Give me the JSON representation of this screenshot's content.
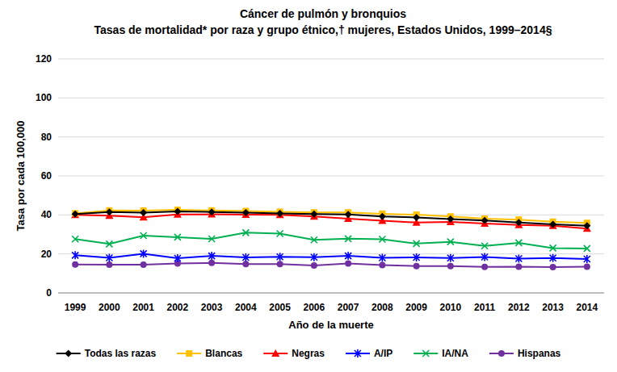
{
  "chart_data": {
    "type": "line",
    "title": "Cáncer de pulmón y bronquios",
    "subtitle": "Tasas de mortalidad* por raza y grupo étnico,† mujeres, Estados Unidos, 1999–2014§",
    "x_label": "Año de la muerte",
    "y_label": "Tasa por cada 100,000",
    "categories": [
      "1999",
      "2000",
      "2001",
      "2002",
      "2003",
      "2004",
      "2005",
      "2006",
      "2007",
      "2008",
      "2009",
      "2010",
      "2011",
      "2012",
      "2013",
      "2014"
    ],
    "ylim": [
      0,
      120
    ],
    "yticks": [
      0,
      20,
      40,
      60,
      80,
      100,
      120
    ],
    "grid": true,
    "legend": "bottom",
    "series": [
      {
        "name": "Todas las razas",
        "color": "#000000",
        "marker": "diamond",
        "values": [
          40.5,
          41.5,
          41.2,
          41.8,
          41.5,
          41.2,
          40.8,
          40.5,
          40.2,
          39.2,
          38.7,
          37.9,
          37.1,
          36.1,
          35.2,
          34.4
        ]
      },
      {
        "name": "Blancas",
        "color": "#FFC000",
        "marker": "square",
        "values": [
          40.8,
          42.3,
          42.2,
          42.6,
          42.3,
          42.0,
          41.6,
          41.3,
          41.3,
          40.6,
          40.1,
          39.2,
          38.1,
          37.6,
          36.5,
          35.9
        ]
      },
      {
        "name": "Negras",
        "color": "#FF0000",
        "marker": "triangle",
        "values": [
          40.0,
          39.6,
          38.8,
          40.2,
          40.3,
          40.1,
          40.0,
          39.2,
          38.1,
          37.0,
          36.1,
          36.4,
          35.6,
          34.9,
          34.4,
          33.0
        ]
      },
      {
        "name": "A/IP",
        "color": "#0000FF",
        "marker": "star",
        "values": [
          19.3,
          18.0,
          20.1,
          17.8,
          19.0,
          18.2,
          18.5,
          18.3,
          19.0,
          18.0,
          18.2,
          17.9,
          18.4,
          17.6,
          17.9,
          17.4
        ]
      },
      {
        "name": "IA/NA",
        "color": "#00B050",
        "marker": "x",
        "values": [
          27.6,
          25.1,
          29.4,
          28.6,
          27.7,
          30.9,
          30.4,
          27.2,
          27.8,
          27.5,
          25.3,
          26.2,
          24.1,
          25.7,
          23.0,
          22.8
        ]
      },
      {
        "name": "Hispanas",
        "color": "#7030A0",
        "marker": "circle",
        "values": [
          14.6,
          14.5,
          14.5,
          15.1,
          15.4,
          14.8,
          14.8,
          14.1,
          15.1,
          14.3,
          13.8,
          13.8,
          13.3,
          13.5,
          13.2,
          13.5
        ]
      }
    ]
  }
}
